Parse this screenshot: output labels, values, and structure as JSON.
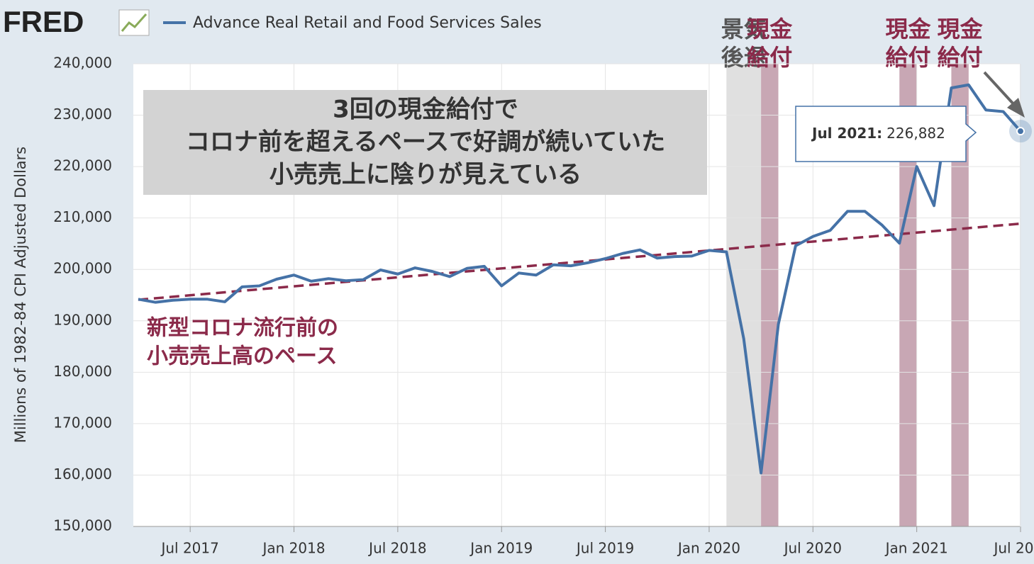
{
  "chart_data": {
    "type": "line",
    "logo": "FRED",
    "y_axis_label": "Millions of 1982-84 CPI Adjusted Dollars",
    "x": [
      "2017-04",
      "2017-05",
      "2017-06",
      "2017-07",
      "2017-08",
      "2017-09",
      "2017-10",
      "2017-11",
      "2017-12",
      "2018-01",
      "2018-02",
      "2018-03",
      "2018-04",
      "2018-05",
      "2018-06",
      "2018-07",
      "2018-08",
      "2018-09",
      "2018-10",
      "2018-11",
      "2018-12",
      "2019-01",
      "2019-02",
      "2019-03",
      "2019-04",
      "2019-05",
      "2019-06",
      "2019-07",
      "2019-08",
      "2019-09",
      "2019-10",
      "2019-11",
      "2019-12",
      "2020-01",
      "2020-02",
      "2020-03",
      "2020-04",
      "2020-05",
      "2020-06",
      "2020-07",
      "2020-08",
      "2020-09",
      "2020-10",
      "2020-11",
      "2020-12",
      "2021-01",
      "2021-02",
      "2021-03",
      "2021-04",
      "2021-05",
      "2021-06",
      "2021-07"
    ],
    "series": [
      {
        "name": "Advance Real Retail and Food Services Sales",
        "color": "#4572a7",
        "values": [
          194200,
          193600,
          194000,
          194200,
          194200,
          193700,
          196600,
          196800,
          198100,
          198900,
          197700,
          198200,
          197800,
          198000,
          199900,
          199100,
          200300,
          199600,
          198600,
          200200,
          200600,
          196800,
          199300,
          198900,
          200900,
          200700,
          201300,
          202100,
          203100,
          203800,
          202200,
          202500,
          202600,
          203700,
          203400,
          186500,
          160400,
          189300,
          204600,
          206400,
          207600,
          211300,
          211300,
          208600,
          205100,
          220000,
          212400,
          235300,
          235900,
          231000,
          230700,
          226882
        ]
      }
    ],
    "xlim": [
      "2017-04",
      "2021-07"
    ],
    "xticks": [
      {
        "value": "2017-07",
        "label": "Jul 2017"
      },
      {
        "value": "2018-01",
        "label": "Jan 2018"
      },
      {
        "value": "2018-07",
        "label": "Jul 2018"
      },
      {
        "value": "2019-01",
        "label": "Jan 2019"
      },
      {
        "value": "2019-07",
        "label": "Jul 2019"
      },
      {
        "value": "2020-01",
        "label": "Jan 2020"
      },
      {
        "value": "2020-07",
        "label": "Jul 2020"
      },
      {
        "value": "2021-01",
        "label": "Jan 2021"
      },
      {
        "value": "2021-07",
        "label": "Jul 20..."
      }
    ],
    "ylim": [
      150000,
      240000
    ],
    "yticks": [
      {
        "value": 150000,
        "label": "150,000"
      },
      {
        "value": 160000,
        "label": "160,000"
      },
      {
        "value": 170000,
        "label": "170,000"
      },
      {
        "value": 180000,
        "label": "180,000"
      },
      {
        "value": 190000,
        "label": "190,000"
      },
      {
        "value": 200000,
        "label": "200,000"
      },
      {
        "value": 210000,
        "label": "210,000"
      },
      {
        "value": 220000,
        "label": "220,000"
      },
      {
        "value": 230000,
        "label": "230,000"
      },
      {
        "value": 240000,
        "label": "240,000"
      }
    ],
    "grid": true,
    "trend": {
      "color": "#8b2a4a",
      "x": [
        "2017-04",
        "2021-07"
      ],
      "values": [
        194100,
        208900
      ]
    },
    "shading": [
      {
        "start": "2020-02",
        "end": "2020-04",
        "color": "#e0e0e0",
        "label_color": "#555555",
        "label": [
          "景気",
          "後退"
        ]
      },
      {
        "start": "2020-04",
        "end": "2020-05",
        "color": "#b68a9b",
        "label_color": "#8b2a4a",
        "label": [
          "現金",
          "給付"
        ]
      },
      {
        "start": "2020-12",
        "end": "2021-01",
        "color": "#b68a9b",
        "label_color": "#8b2a4a",
        "label": [
          "現金",
          "給付"
        ]
      },
      {
        "start": "2021-03",
        "end": "2021-04",
        "color": "#b68a9b",
        "label_color": "#8b2a4a",
        "label": [
          "現金",
          "給付"
        ]
      }
    ],
    "annotation_box": [
      "3回の現金給付で",
      "コロナ前を超えるペースで好調が続いていた",
      "小売売上に陰りが見えている"
    ],
    "trend_label": [
      "新型コロナ流行前の",
      "小売売上高のペース"
    ],
    "tooltip": {
      "label": "Jul 2021:",
      "value_label": "226,882"
    }
  }
}
